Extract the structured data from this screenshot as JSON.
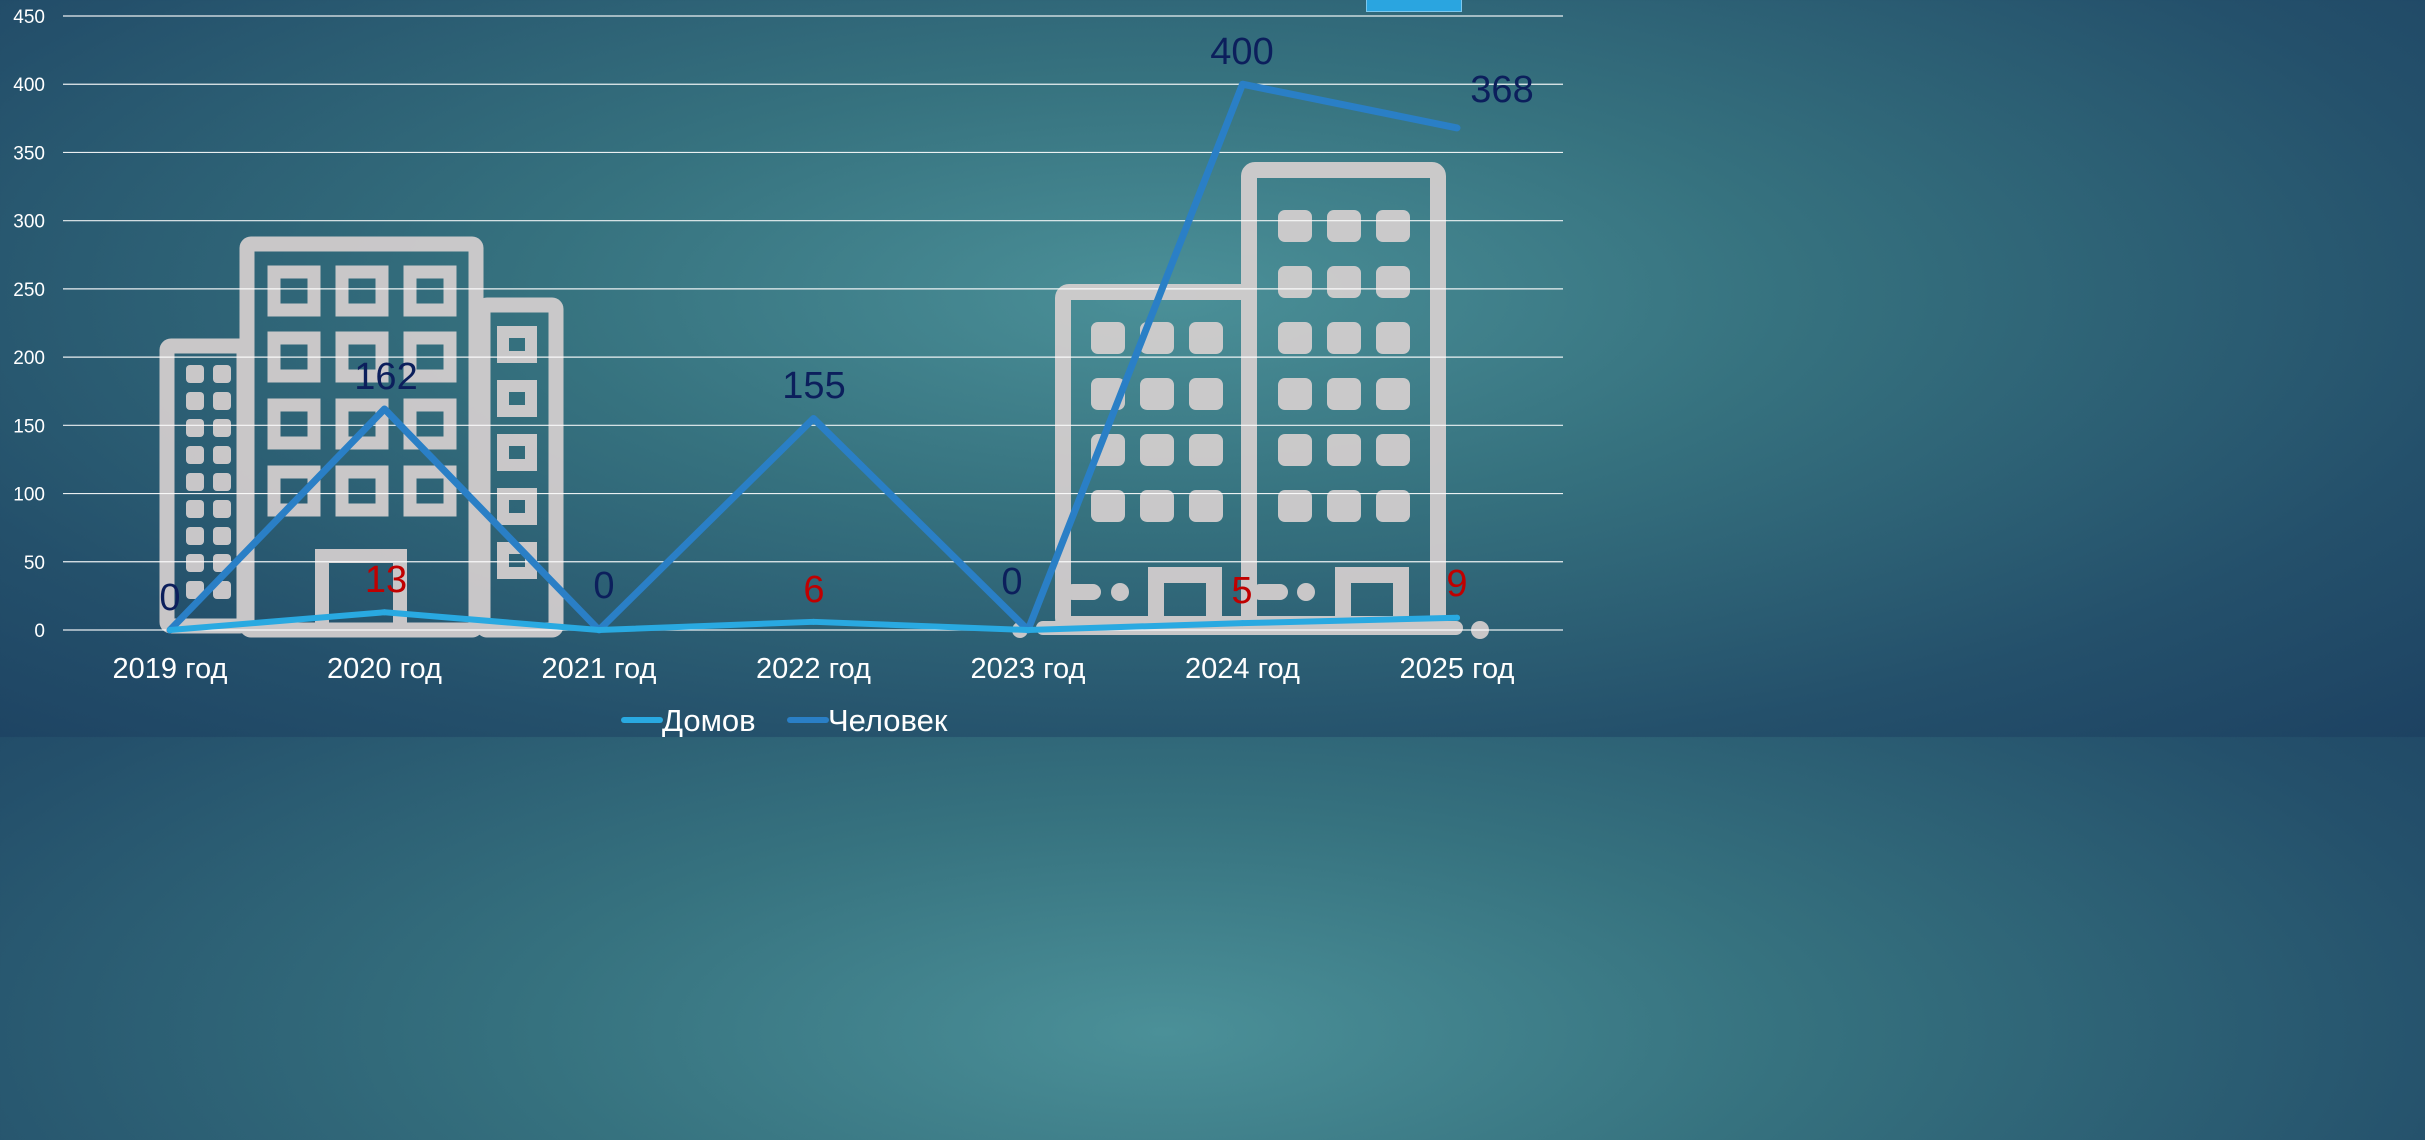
{
  "chart_data": {
    "type": "line",
    "categories": [
      "2019 год",
      "2020 год",
      "2021 год",
      "2022 год",
      "2023 год",
      "2024 год",
      "2025 год"
    ],
    "ylim": [
      0,
      450
    ],
    "yticks": [
      0,
      50,
      100,
      150,
      200,
      250,
      300,
      350,
      400,
      450
    ],
    "grid": true,
    "legend_position": "bottom",
    "series": [
      {
        "name": "Домов",
        "values": [
          0,
          13,
          0,
          6,
          0,
          5,
          9
        ],
        "color": "#29a9e1",
        "label_color": "#c00000",
        "show_zero_labels": false
      },
      {
        "name": "Человек",
        "values": [
          0,
          162,
          0,
          155,
          0,
          400,
          368
        ],
        "color": "#2a7fc6",
        "label_color": "#0c1f5c",
        "show_zero_labels": true
      }
    ]
  },
  "colors": {
    "gridline": "#ffffff",
    "building": "#d8d2d2",
    "corner_box": "#2aa5e0"
  }
}
